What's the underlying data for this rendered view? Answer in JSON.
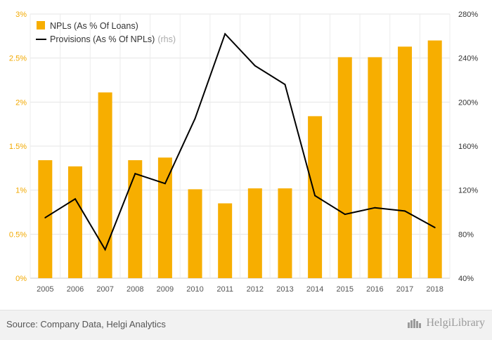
{
  "chart_data": {
    "type": "bar",
    "categories": [
      "2005",
      "2006",
      "2007",
      "2008",
      "2009",
      "2010",
      "2011",
      "2012",
      "2013",
      "2014",
      "2015",
      "2016",
      "2017",
      "2018"
    ],
    "series": [
      {
        "name": "NPLs (As % Of Loans)",
        "type": "bar",
        "axis": "left",
        "color": "#f7ae00",
        "values": [
          1.34,
          1.27,
          2.11,
          1.34,
          1.37,
          1.01,
          0.85,
          1.02,
          1.02,
          1.84,
          2.51,
          2.51,
          2.63,
          2.7
        ]
      },
      {
        "name": "Provisions (As % Of NPLs)",
        "name_suffix": "(rhs)",
        "type": "line",
        "axis": "right",
        "color": "#000000",
        "values": [
          95,
          112,
          66,
          135,
          126,
          185,
          262,
          233,
          216,
          115,
          98,
          104,
          101,
          86
        ]
      }
    ],
    "y_left": {
      "min": 0,
      "max": 3,
      "ticks": [
        0,
        0.5,
        1,
        1.5,
        2,
        2.5,
        3
      ],
      "tick_labels": [
        "0%",
        "0.5%",
        "1%",
        "1.5%",
        "2%",
        "2.5%",
        "3%"
      ]
    },
    "y_right": {
      "min": 40,
      "max": 280,
      "ticks": [
        40,
        80,
        120,
        160,
        200,
        240,
        280
      ],
      "tick_labels": [
        "40%",
        "80%",
        "120%",
        "160%",
        "200%",
        "240%",
        "280%"
      ]
    },
    "grid": true,
    "legend_position": "top-left"
  },
  "footer": {
    "source": "Source: Company Data, Helgi Analytics",
    "brand": "HelgiLibrary"
  }
}
